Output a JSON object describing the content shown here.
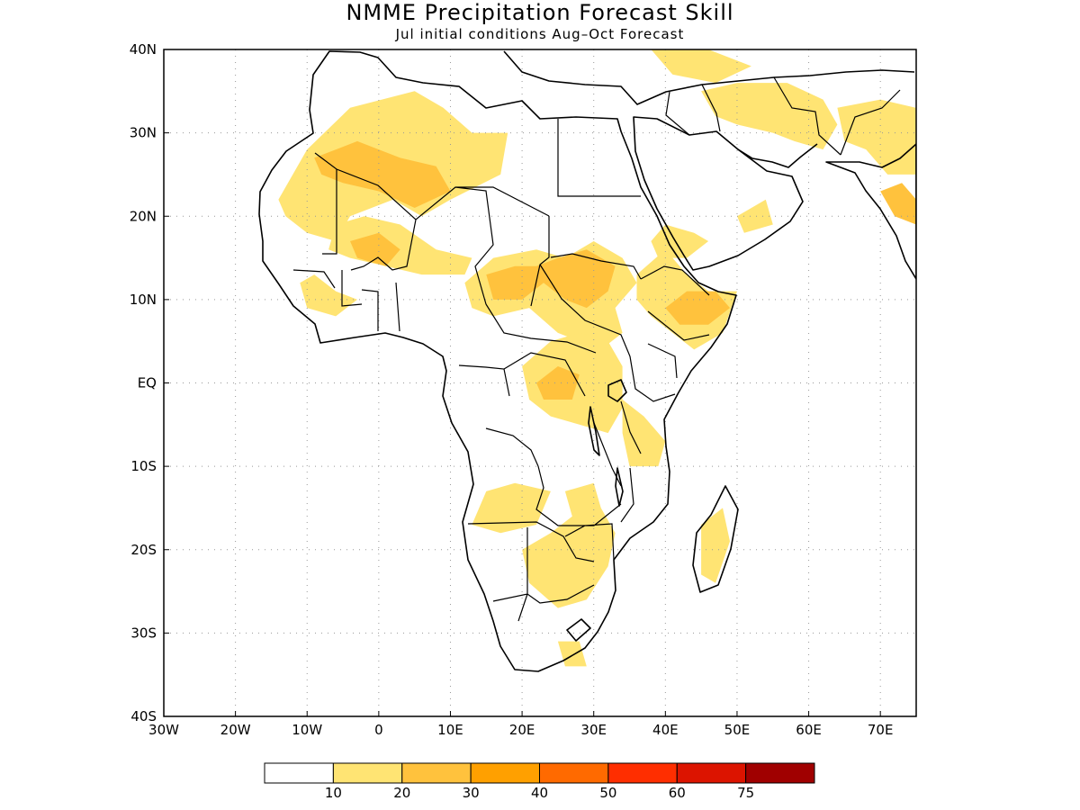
{
  "title": "NMME Precipitation Forecast Skill",
  "subtitle": "Jul initial conditions  Aug–Oct Forecast",
  "map": {
    "lon_range": [
      -30,
      75
    ],
    "lat_range": [
      -40,
      40
    ],
    "lon_ticks": [
      {
        "value": -30,
        "label": "30W"
      },
      {
        "value": -20,
        "label": "20W"
      },
      {
        "value": -10,
        "label": "10W"
      },
      {
        "value": 0,
        "label": "0"
      },
      {
        "value": 10,
        "label": "10E"
      },
      {
        "value": 20,
        "label": "20E"
      },
      {
        "value": 30,
        "label": "30E"
      },
      {
        "value": 40,
        "label": "40E"
      },
      {
        "value": 50,
        "label": "50E"
      },
      {
        "value": 60,
        "label": "60E"
      },
      {
        "value": 70,
        "label": "70E"
      }
    ],
    "lat_ticks": [
      {
        "value": 40,
        "label": "40N"
      },
      {
        "value": 30,
        "label": "30N"
      },
      {
        "value": 20,
        "label": "20N"
      },
      {
        "value": 10,
        "label": "10N"
      },
      {
        "value": 0,
        "label": "EQ"
      },
      {
        "value": -10,
        "label": "10S"
      },
      {
        "value": -20,
        "label": "20S"
      },
      {
        "value": -30,
        "label": "30S"
      },
      {
        "value": -40,
        "label": "40S"
      }
    ],
    "grid": true
  },
  "legend": {
    "colors": [
      "#ffffff",
      "#ffe473",
      "#ffc23d",
      "#ffa000",
      "#ff6a00",
      "#ff2e00",
      "#dc1400",
      "#a00000"
    ],
    "labels": [
      "10",
      "20",
      "30",
      "40",
      "50",
      "60",
      "75"
    ]
  },
  "skill_regions": [
    {
      "level": 1,
      "points": [
        [
          -14,
          22
        ],
        [
          -10,
          28
        ],
        [
          -4,
          33
        ],
        [
          5,
          35
        ],
        [
          9,
          33
        ],
        [
          13,
          30
        ],
        [
          18,
          30
        ],
        [
          17,
          25
        ],
        [
          10,
          22
        ],
        [
          6,
          20
        ],
        [
          2,
          22
        ],
        [
          -4,
          20
        ],
        [
          -6,
          17
        ],
        [
          -10,
          18
        ],
        [
          -13,
          20
        ]
      ]
    },
    {
      "level": 2,
      "points": [
        [
          -9,
          27
        ],
        [
          -3,
          29
        ],
        [
          3,
          27
        ],
        [
          8,
          26
        ],
        [
          10,
          23
        ],
        [
          5,
          21
        ],
        [
          0,
          23
        ],
        [
          -5,
          24
        ],
        [
          -8,
          25
        ]
      ]
    },
    {
      "level": 1,
      "points": [
        [
          -6,
          19
        ],
        [
          -2,
          20
        ],
        [
          3,
          19
        ],
        [
          8,
          16
        ],
        [
          13,
          15
        ],
        [
          12,
          13
        ],
        [
          6,
          13
        ],
        [
          1,
          14
        ],
        [
          -4,
          15
        ],
        [
          -7,
          16
        ]
      ]
    },
    {
      "level": 2,
      "points": [
        [
          -4,
          17
        ],
        [
          0,
          18
        ],
        [
          3,
          16
        ],
        [
          1,
          14
        ],
        [
          -3,
          15
        ]
      ]
    },
    {
      "level": 1,
      "points": [
        [
          -11,
          12
        ],
        [
          -9,
          13
        ],
        [
          -6,
          11
        ],
        [
          -3,
          10
        ],
        [
          -6,
          8
        ],
        [
          -10,
          9
        ]
      ]
    },
    {
      "level": 1,
      "points": [
        [
          12,
          12
        ],
        [
          16,
          15
        ],
        [
          22,
          16
        ],
        [
          26,
          15
        ],
        [
          30,
          17
        ],
        [
          34,
          15
        ],
        [
          36,
          12
        ],
        [
          33,
          9
        ],
        [
          34,
          6
        ],
        [
          31,
          4
        ],
        [
          25,
          6
        ],
        [
          21,
          9
        ],
        [
          16,
          8
        ],
        [
          13,
          9
        ]
      ]
    },
    {
      "level": 2,
      "points": [
        [
          15,
          13
        ],
        [
          19,
          14
        ],
        [
          22,
          14
        ],
        [
          25,
          15
        ],
        [
          29,
          16
        ],
        [
          33,
          14
        ],
        [
          32,
          11
        ],
        [
          29,
          9
        ],
        [
          26,
          10
        ],
        [
          23,
          12
        ],
        [
          20,
          10
        ],
        [
          16,
          10
        ]
      ]
    },
    {
      "level": 1,
      "points": [
        [
          36,
          13
        ],
        [
          40,
          16
        ],
        [
          43,
          13
        ],
        [
          46,
          11
        ],
        [
          50,
          11
        ],
        [
          48,
          6
        ],
        [
          44,
          4
        ],
        [
          41,
          6
        ],
        [
          38,
          8
        ],
        [
          36,
          10
        ]
      ]
    },
    {
      "level": 2,
      "points": [
        [
          40,
          9
        ],
        [
          43,
          11
        ],
        [
          47,
          11
        ],
        [
          49,
          9
        ],
        [
          46,
          7
        ],
        [
          42,
          7
        ]
      ]
    },
    {
      "level": 1,
      "points": [
        [
          38,
          17
        ],
        [
          40,
          19
        ],
        [
          44,
          18
        ],
        [
          46,
          17
        ],
        [
          43,
          15
        ],
        [
          39,
          15
        ]
      ]
    },
    {
      "level": 1,
      "points": [
        [
          50,
          20
        ],
        [
          54,
          22
        ],
        [
          55,
          19
        ],
        [
          51,
          18
        ]
      ]
    },
    {
      "level": 1,
      "points": [
        [
          20,
          2
        ],
        [
          24,
          5
        ],
        [
          28,
          6
        ],
        [
          32,
          5
        ],
        [
          34,
          2
        ],
        [
          34,
          -3
        ],
        [
          32,
          -6
        ],
        [
          28,
          -5
        ],
        [
          24,
          -4
        ],
        [
          21,
          -2
        ]
      ]
    },
    {
      "level": 2,
      "points": [
        [
          22,
          0
        ],
        [
          25,
          2
        ],
        [
          28,
          1
        ],
        [
          27,
          -2
        ],
        [
          23,
          -2
        ]
      ]
    },
    {
      "level": 1,
      "points": [
        [
          34,
          -2
        ],
        [
          37,
          -4
        ],
        [
          40,
          -7
        ],
        [
          39,
          -10
        ],
        [
          35,
          -10
        ],
        [
          34,
          -6
        ]
      ]
    },
    {
      "level": 1,
      "points": [
        [
          15,
          -13
        ],
        [
          19,
          -12
        ],
        [
          24,
          -13
        ],
        [
          22,
          -17
        ],
        [
          17,
          -18
        ],
        [
          13,
          -17
        ]
      ]
    },
    {
      "level": 1,
      "points": [
        [
          26,
          -13
        ],
        [
          30,
          -12
        ],
        [
          31,
          -15
        ],
        [
          33,
          -18
        ],
        [
          32,
          -22
        ],
        [
          29,
          -26
        ],
        [
          25,
          -27
        ],
        [
          21,
          -24
        ],
        [
          20,
          -20
        ],
        [
          24,
          -18
        ],
        [
          27,
          -16
        ]
      ]
    },
    {
      "level": 1,
      "points": [
        [
          25,
          -31
        ],
        [
          28,
          -31
        ],
        [
          29,
          -34
        ],
        [
          26,
          -34
        ]
      ]
    },
    {
      "level": 1,
      "points": [
        [
          45,
          -17
        ],
        [
          48,
          -15
        ],
        [
          49,
          -19
        ],
        [
          47,
          -24
        ],
        [
          45,
          -23
        ]
      ]
    },
    {
      "level": 1,
      "points": [
        [
          45,
          35
        ],
        [
          50,
          36
        ],
        [
          57,
          36
        ],
        [
          62,
          34
        ],
        [
          64,
          31
        ],
        [
          62,
          28
        ],
        [
          58,
          29
        ],
        [
          55,
          30
        ],
        [
          50,
          31
        ],
        [
          47,
          32
        ]
      ]
    },
    {
      "level": 1,
      "points": [
        [
          38,
          40
        ],
        [
          46,
          40
        ],
        [
          52,
          38
        ],
        [
          47,
          36
        ],
        [
          41,
          37
        ]
      ]
    },
    {
      "level": 1,
      "points": [
        [
          64,
          33
        ],
        [
          70,
          34
        ],
        [
          75,
          33
        ],
        [
          75,
          25
        ],
        [
          71,
          25
        ],
        [
          68,
          28
        ],
        [
          65,
          29
        ]
      ]
    },
    {
      "level": 2,
      "points": [
        [
          70,
          23
        ],
        [
          73,
          24
        ],
        [
          75,
          22
        ],
        [
          75,
          19
        ],
        [
          72,
          20
        ]
      ]
    }
  ]
}
